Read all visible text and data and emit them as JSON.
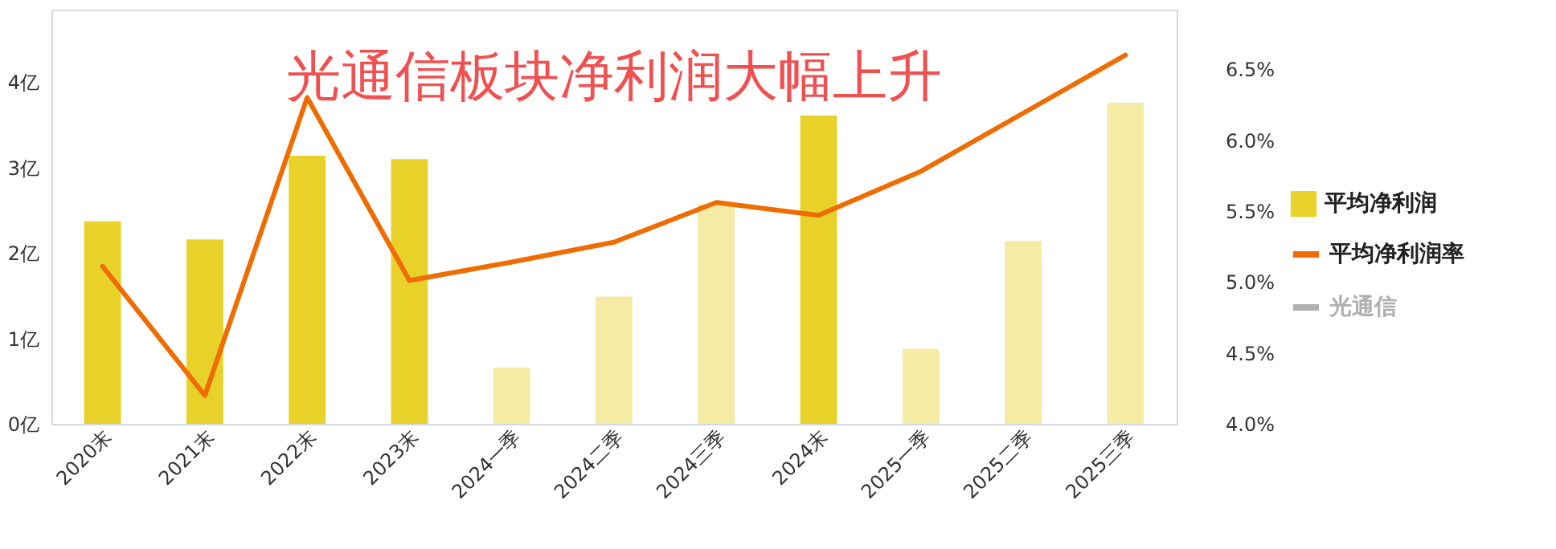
{
  "chart_data": {
    "type": "bar",
    "title": "光通信板块净利润大幅上升",
    "categories": [
      "2020末",
      "2021末",
      "2022末",
      "2023末",
      "2024一季",
      "2024二季",
      "2024三季",
      "2024末",
      "2025一季",
      "2025二季",
      "2025三季"
    ],
    "series": [
      {
        "name": "平均净利润",
        "color": "#e8d22a",
        "colors": [
          "#e8d22a",
          "#e8d22a",
          "#e8d22a",
          "#e8d22a",
          "#f5eba5",
          "#f5eba5",
          "#f5eba5",
          "#e8d22a",
          "#f5eba5",
          "#f5eba5",
          "#f5eba5"
        ],
        "values": [
          2.37,
          2.16,
          3.14,
          3.1,
          0.66,
          1.49,
          2.57,
          3.61,
          0.88,
          2.14,
          3.76
        ]
      },
      {
        "name": "平均净利润率",
        "type": "line",
        "axis": "y2",
        "color": "#ef6c00",
        "values": [
          5.11,
          4.2,
          6.3,
          5.01,
          5.14,
          5.28,
          5.56,
          5.47,
          5.78,
          6.19,
          6.6
        ]
      },
      {
        "name": "光通信",
        "type": "line",
        "color": "#b0b0b0",
        "values": [
          null,
          null,
          null,
          null,
          null,
          null,
          null,
          null,
          null,
          null,
          null
        ]
      }
    ],
    "ylim": [
      0,
      4.85
    ],
    "yticks": [
      {
        "value": 0,
        "label": "0亿"
      },
      {
        "value": 1,
        "label": "1亿"
      },
      {
        "value": 2,
        "label": "2亿"
      },
      {
        "value": 3,
        "label": "3亿"
      },
      {
        "value": 4,
        "label": "4亿"
      }
    ],
    "y2lim": [
      4.0,
      6.92
    ],
    "y2ticks": [
      {
        "value": 4.0,
        "label": "4.0%"
      },
      {
        "value": 4.5,
        "label": "4.5%"
      },
      {
        "value": 5.0,
        "label": "5.0%"
      },
      {
        "value": 5.5,
        "label": "5.5%"
      },
      {
        "value": 6.0,
        "label": "6.0%"
      },
      {
        "value": 6.5,
        "label": "6.5%"
      }
    ],
    "grid": false,
    "legend": "right"
  }
}
